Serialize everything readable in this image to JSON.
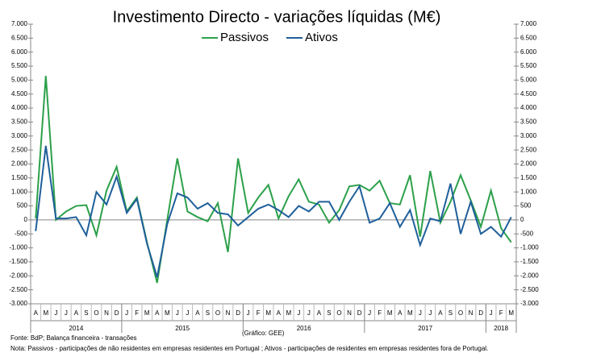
{
  "chart_data": {
    "type": "line",
    "title": "Investimento  Directo - variações líquidas (M€)",
    "source": "Fonte: BdP; Balança financeira - transações",
    "credit": "(Gráfico: GEE)",
    "note": "Nota: Passivos - participações de não residentes em empresas residentes em Portugal ; Ativos - participações de residentes em empresas residentes fora de Portugal.",
    "categories": [
      "A",
      "M",
      "J",
      "J",
      "A",
      "S",
      "O",
      "N",
      "D",
      "J",
      "F",
      "M",
      "A",
      "M",
      "J",
      "J",
      "A",
      "S",
      "O",
      "N",
      "D",
      "J",
      "F",
      "M",
      "A",
      "M",
      "J",
      "J",
      "A",
      "S",
      "O",
      "N",
      "D",
      "J",
      "F",
      "M",
      "A",
      "M",
      "J",
      "J",
      "A",
      "S",
      "O",
      "N",
      "D",
      "J",
      "F",
      "M"
    ],
    "year_labels": [
      "2014",
      "2015",
      "2016",
      "2017",
      "2018"
    ],
    "series": [
      {
        "name": "Passivos",
        "color": "#2ca04a",
        "values": [
          50,
          5150,
          0,
          300,
          500,
          530,
          -550,
          1050,
          1900,
          300,
          800,
          -800,
          -2250,
          0,
          2200,
          300,
          100,
          -50,
          600,
          -1150,
          2200,
          250,
          800,
          1250,
          50,
          850,
          1450,
          650,
          550,
          -100,
          350,
          1200,
          1250,
          1050,
          1400,
          600,
          550,
          1600,
          -600,
          1750,
          -100,
          650,
          1600,
          700,
          -250,
          1050,
          -300,
          -800
        ]
      },
      {
        "name": "Ativos",
        "color": "#1f5f9a",
        "values": [
          -400,
          2650,
          50,
          50,
          100,
          -550,
          1000,
          550,
          1550,
          250,
          750,
          -850,
          -2050,
          -150,
          950,
          800,
          400,
          600,
          250,
          200,
          -200,
          100,
          400,
          550,
          350,
          100,
          500,
          300,
          650,
          650,
          0,
          650,
          1200,
          -100,
          50,
          600,
          -250,
          350,
          -900,
          50,
          -50,
          1300,
          -500,
          650,
          -500,
          -250,
          -600,
          100
        ]
      }
    ],
    "ylim": [
      -3000,
      7000
    ],
    "yticks": [
      {
        "value": -3000,
        "label": "-3.000"
      },
      {
        "value": -2500,
        "label": "-2.500"
      },
      {
        "value": -2000,
        "label": "-2.000"
      },
      {
        "value": -1500,
        "label": "-1.500"
      },
      {
        "value": -1000,
        "label": "-1.000"
      },
      -500,
      0,
      500,
      {
        "value": 1000,
        "label": "1.000"
      },
      {
        "value": 1500,
        "label": "1.500"
      },
      {
        "value": 2000,
        "label": "2.000"
      },
      {
        "value": 2500,
        "label": "2.500"
      },
      {
        "value": 3000,
        "label": "3.000"
      },
      {
        "value": 3500,
        "label": "3.500"
      },
      {
        "value": 4000,
        "label": "4.000"
      },
      {
        "value": 4500,
        "label": "4.500"
      },
      {
        "value": 5000,
        "label": "5.000"
      },
      {
        "value": 5500,
        "label": "5.500"
      },
      {
        "value": 6000,
        "label": "6.000"
      },
      {
        "value": 6500,
        "label": "6.500"
      },
      {
        "value": 7000,
        "label": "7.000"
      }
    ],
    "y2lim": [
      -3000,
      7000
    ],
    "y2ticks": [
      {
        "value": -3000,
        "label": "-3.000"
      },
      {
        "value": -2500,
        "label": "-2.500"
      },
      {
        "value": -2000,
        "label": "-2.000"
      },
      {
        "value": -1500,
        "label": "-1.500"
      },
      {
        "value": -1000,
        "label": "-1.000"
      },
      -500,
      0,
      500,
      {
        "value": 1000,
        "label": "1.000"
      },
      {
        "value": 1500,
        "label": "1.500"
      },
      {
        "value": 2000,
        "label": "2.000"
      },
      {
        "value": 2500,
        "label": "2.500"
      },
      {
        "value": 3000,
        "label": "3.000"
      },
      {
        "value": 3500,
        "label": "3.500"
      },
      {
        "value": 4000,
        "label": "4.000"
      },
      {
        "value": 4500,
        "label": "4.500"
      },
      {
        "value": 5000,
        "label": "5.000"
      },
      {
        "value": 5500,
        "label": "5.500"
      },
      {
        "value": 6000,
        "label": "6.000"
      },
      {
        "value": 6500,
        "label": "6.500"
      },
      {
        "value": 7000,
        "label": "7.000"
      }
    ],
    "grid": false
  }
}
